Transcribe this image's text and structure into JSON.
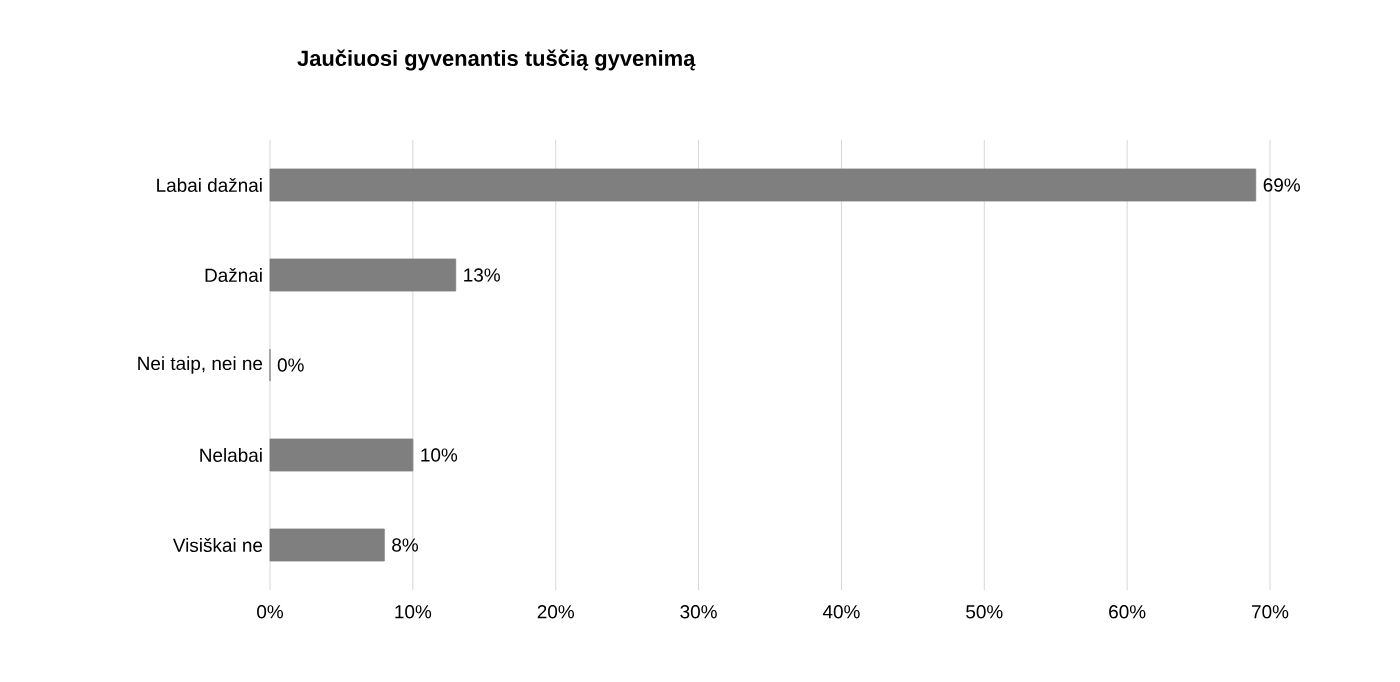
{
  "chart_data": {
    "type": "bar",
    "orientation": "horizontal",
    "title": "Jaučiuosi gyvenantis tuščią gyvenimą",
    "categories": [
      "Labai dažnai",
      "Dažnai",
      "Nei taip, nei ne",
      "Nelabai",
      "Visiškai ne"
    ],
    "values": [
      69,
      13,
      0,
      10,
      8
    ],
    "value_labels": [
      "69%",
      "13%",
      "0%",
      "10%",
      "8%"
    ],
    "color": "#7f7f7f",
    "xlim": [
      0,
      70
    ],
    "xticks": [
      {
        "value": 0,
        "label": "0%"
      },
      {
        "value": 10,
        "label": "10%"
      },
      {
        "value": 20,
        "label": "20%"
      },
      {
        "value": 30,
        "label": "30%"
      },
      {
        "value": 40,
        "label": "40%"
      },
      {
        "value": 50,
        "label": "50%"
      },
      {
        "value": 60,
        "label": "60%"
      },
      {
        "value": 70,
        "label": "70%"
      }
    ],
    "grid": "x"
  }
}
